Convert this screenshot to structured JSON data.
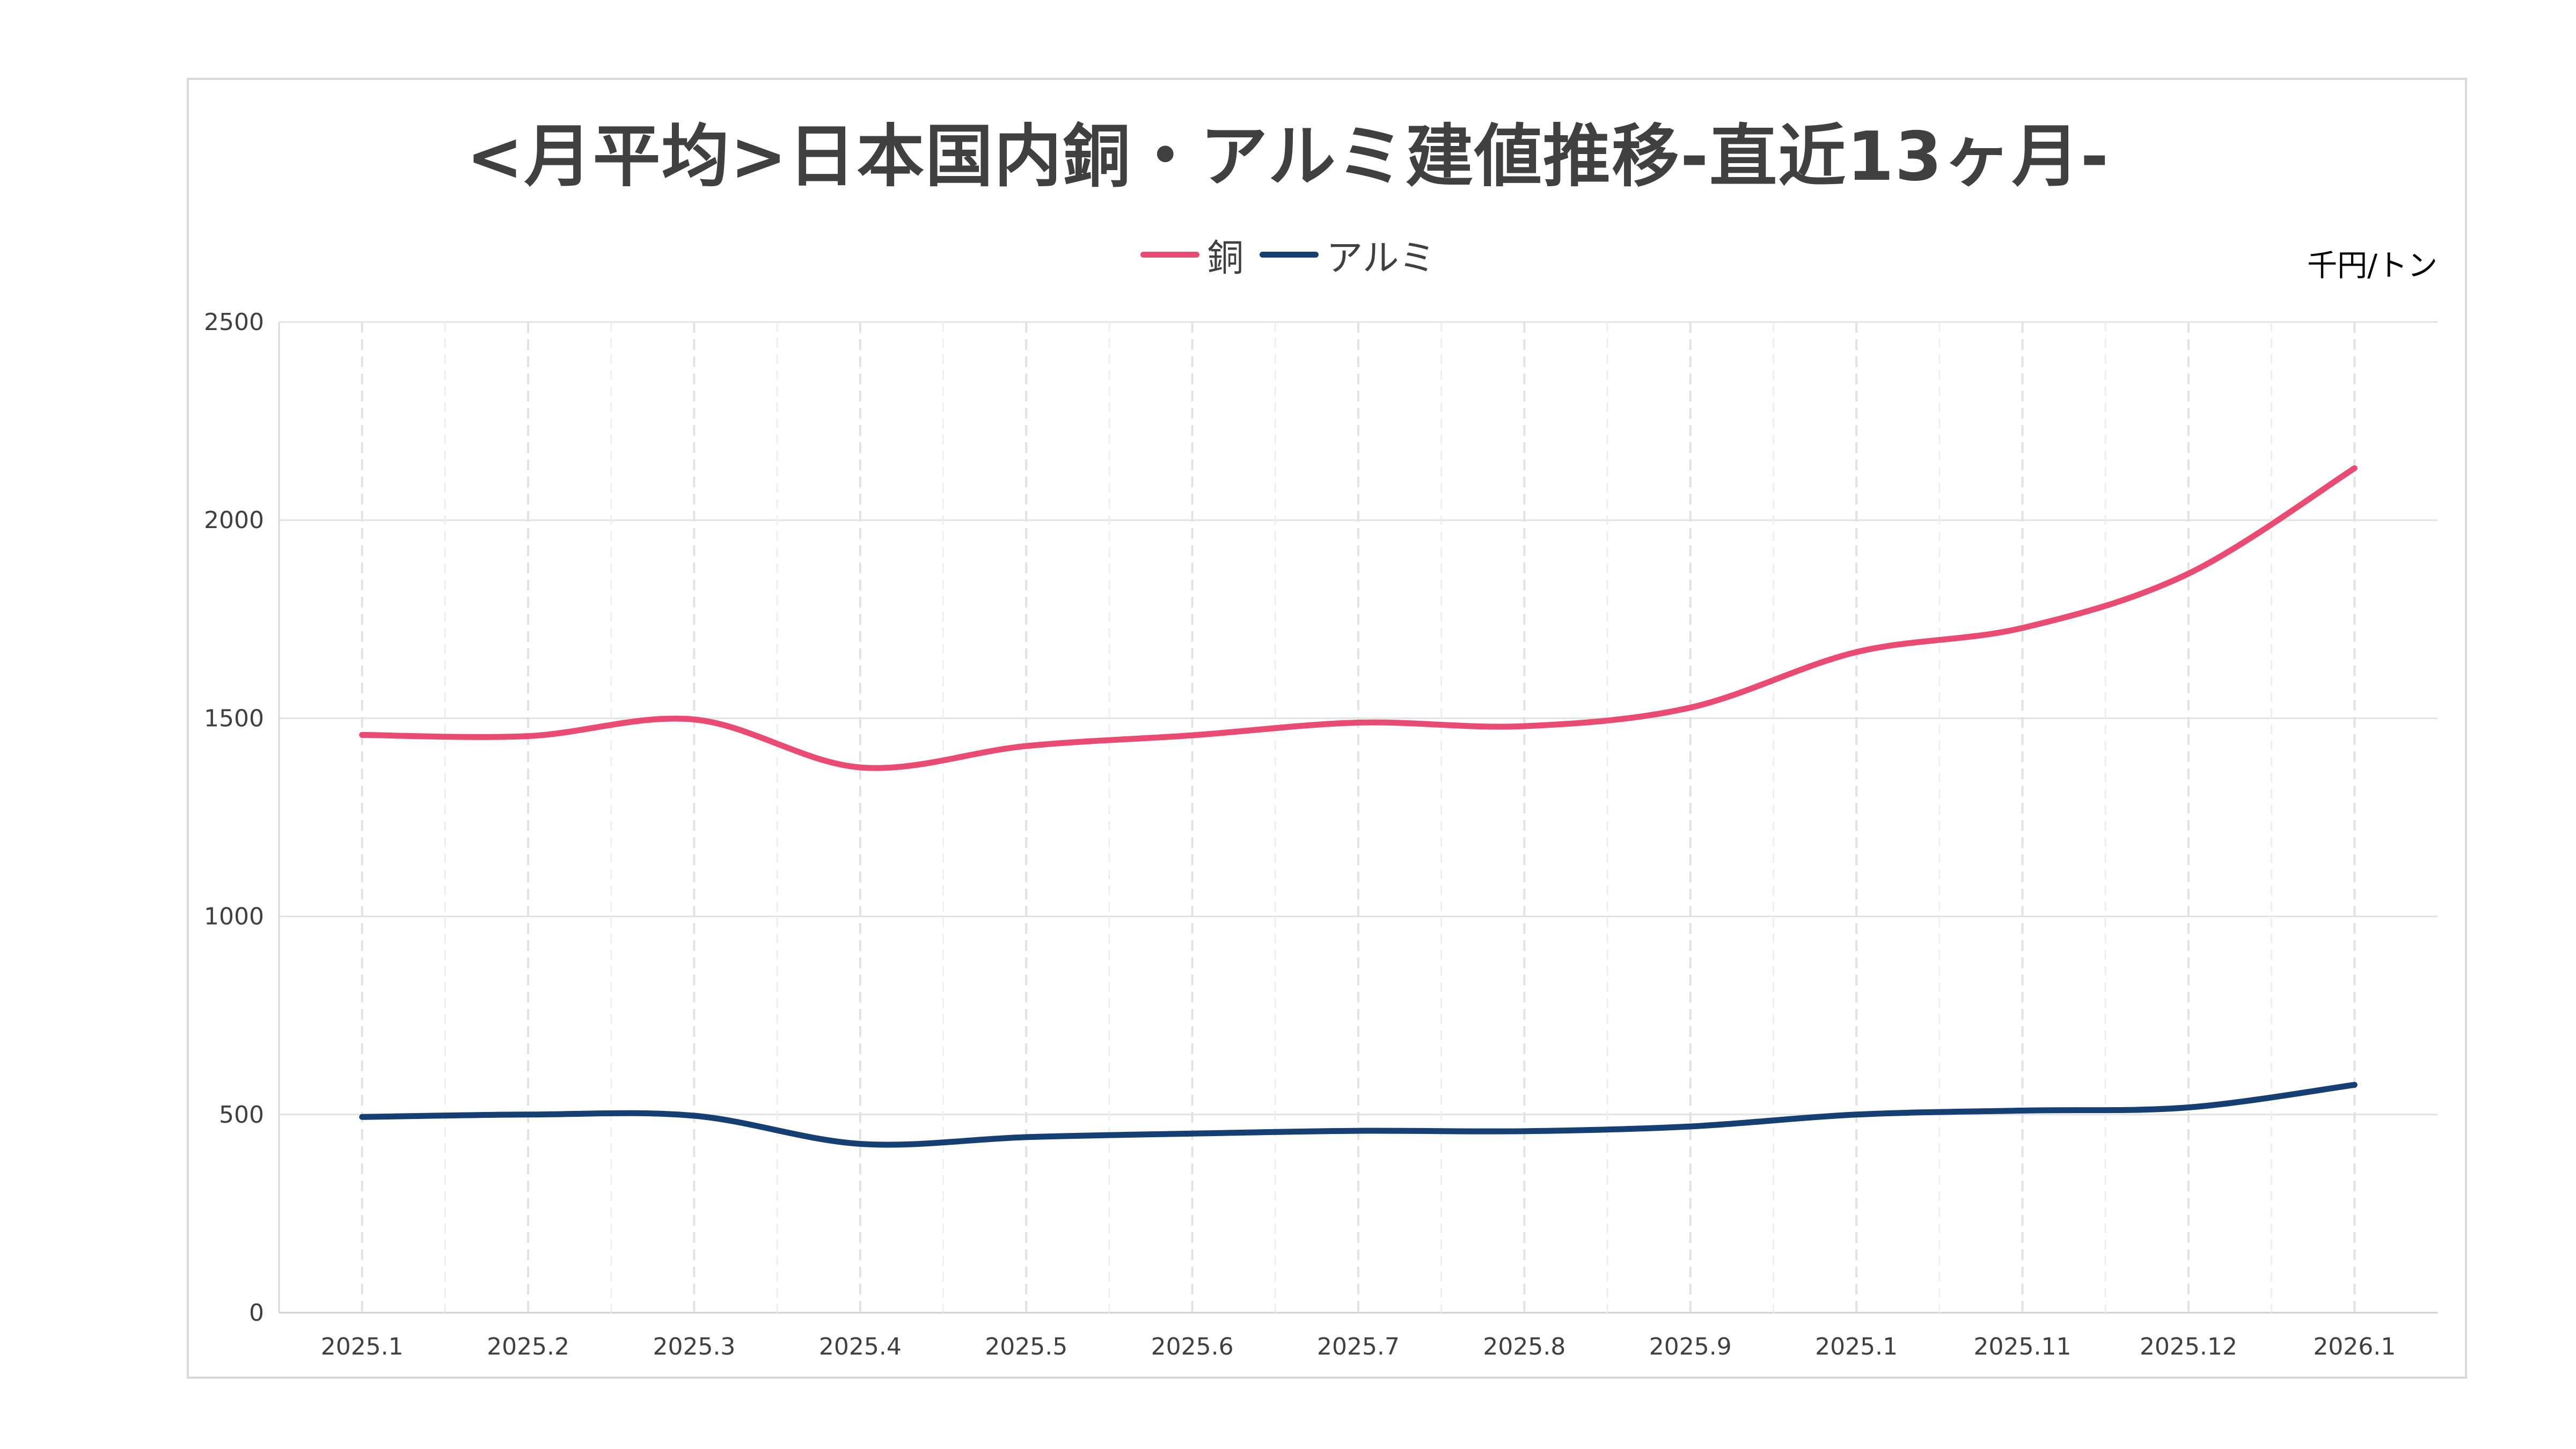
{
  "chart_data": {
    "type": "line",
    "title": "<月平均>日本国内銅・アルミ建値推移-直近13ヶ月-",
    "unit_label": "千円/トン",
    "categories": [
      "2025.1",
      "2025.2",
      "2025.3",
      "2025.4",
      "2025.5",
      "2025.6",
      "2025.7",
      "2025.8",
      "2025.9",
      "2025.1",
      "2025.11",
      "2025.12",
      "2026.1"
    ],
    "series": [
      {
        "name": "銅",
        "color": "#e94b72",
        "values": [
          1458,
          1455,
          1497,
          1376,
          1430,
          1457,
          1489,
          1480,
          1527,
          1667,
          1728,
          1865,
          2131
        ]
      },
      {
        "name": "アルミ",
        "color": "#153e72",
        "values": [
          494,
          500,
          497,
          426,
          443,
          452,
          459,
          458,
          470,
          500,
          510,
          518,
          575
        ]
      }
    ],
    "ylim": [
      0,
      2500
    ],
    "yticks": [
      0,
      500,
      1000,
      1500,
      2000,
      2500
    ],
    "ytick_labels": [
      "0",
      "500",
      "1000",
      "1500",
      "2000",
      "2500"
    ],
    "grid": true,
    "smooth": true,
    "legend_position": "top"
  }
}
